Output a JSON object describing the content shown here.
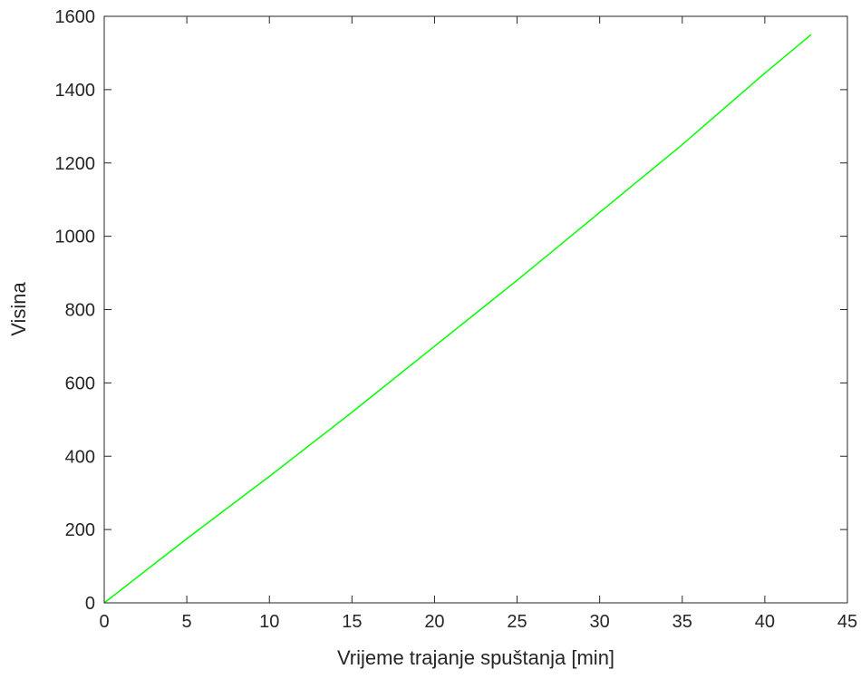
{
  "chart_data": {
    "type": "line",
    "title": "",
    "xlabel": "Vrijeme trajanje spuštanja [min]",
    "ylabel": "Visina",
    "xlim": [
      0,
      45
    ],
    "ylim": [
      0,
      1600
    ],
    "x_ticks": [
      0,
      5,
      10,
      15,
      20,
      25,
      30,
      35,
      40,
      45
    ],
    "y_ticks": [
      0,
      200,
      400,
      600,
      800,
      1000,
      1200,
      1400,
      1600
    ],
    "grid": false,
    "line_color": "#00ff00",
    "series": [
      {
        "x": [
          0,
          5,
          10,
          15,
          20,
          25,
          30,
          35,
          40,
          42.8
        ],
        "values": [
          0,
          175,
          345,
          520,
          700,
          880,
          1065,
          1250,
          1445,
          1550
        ]
      }
    ]
  }
}
